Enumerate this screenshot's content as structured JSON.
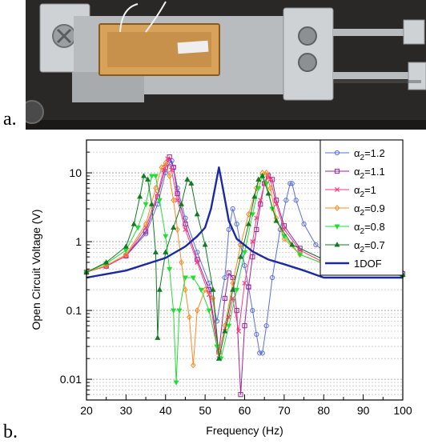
{
  "panels": {
    "a_label": "a.",
    "b_label": "b."
  },
  "photo": {
    "colors": {
      "background": "#2a2826",
      "beam": "#b9bcbe",
      "clamp": "#cfd2d4",
      "patch": "#d9a25a",
      "patch_border": "#8a5a1e"
    }
  },
  "chart_data": {
    "type": "line",
    "xlabel": "Frequency (Hz)",
    "ylabel": "Open Circuit Voltage (V)",
    "xlim": [
      20,
      100
    ],
    "ylim": [
      0.005,
      30
    ],
    "yscale": "log",
    "x_ticks": [
      20,
      30,
      40,
      50,
      60,
      70,
      80,
      90,
      100
    ],
    "y_ticks": [
      {
        "value": 0.01,
        "label": "0.01"
      },
      {
        "value": 0.1,
        "label": "0.1"
      },
      {
        "value": 1,
        "label": "1"
      },
      {
        "value": 10,
        "label": "10"
      }
    ],
    "grid": {
      "horizontal_minor": true,
      "style": "dotted"
    },
    "legend": {
      "placement": "top-right"
    },
    "series": [
      {
        "name": "α2=1.2",
        "legend_base": "α",
        "legend_sub": "2",
        "legend_tail": "=1.2",
        "color": "#5b6ee0",
        "marker": "circle",
        "x": [
          20,
          25,
          30,
          35,
          38,
          40,
          41,
          41.6,
          42,
          43,
          45,
          48,
          51,
          53,
          55,
          56,
          57,
          58,
          59,
          60,
          61,
          62,
          63,
          63.8,
          64.5,
          65.5,
          67,
          69,
          70.5,
          71.5,
          72,
          73,
          75,
          78,
          82,
          88,
          95,
          100
        ],
        "y": [
          0.36,
          0.44,
          0.62,
          1.3,
          3.5,
          10,
          14,
          15,
          12,
          6,
          2.2,
          0.7,
          0.25,
          0.07,
          0.3,
          1.5,
          3,
          1.8,
          0.9,
          0.45,
          0.22,
          0.1,
          0.045,
          0.024,
          0.024,
          0.06,
          0.3,
          1.5,
          4,
          7,
          7,
          4,
          1.8,
          0.9,
          0.6,
          0.45,
          0.38,
          0.35
        ]
      },
      {
        "name": "α2=1.1",
        "legend_base": "α",
        "legend_sub": "2",
        "legend_tail": "=1.1",
        "color": "#a020a0",
        "marker": "square",
        "x": [
          20,
          25,
          30,
          35,
          38,
          40,
          41,
          42,
          43,
          45,
          48,
          51,
          53.5,
          55,
          56,
          57,
          58,
          59,
          60,
          61,
          62,
          63,
          64,
          65,
          66,
          67,
          68,
          70,
          74,
          80,
          88,
          100
        ],
        "y": [
          0.36,
          0.44,
          0.62,
          1.4,
          4.5,
          12,
          17,
          12,
          5,
          1.8,
          0.55,
          0.2,
          0.025,
          0.15,
          0.35,
          0.3,
          0.1,
          0.006,
          0.06,
          0.22,
          0.6,
          1.5,
          3.5,
          7,
          9,
          8,
          4,
          1.7,
          0.8,
          0.55,
          0.42,
          0.34
        ]
      },
      {
        "name": "α2=1",
        "legend_base": "α",
        "legend_sub": "2",
        "legend_tail": "=1",
        "color": "#ff3a7a",
        "marker": "x",
        "x": [
          20,
          25,
          30,
          35,
          38,
          39.5,
          40.5,
          41.5,
          43,
          45,
          48,
          51,
          53.5,
          55,
          56,
          57,
          58.5,
          60,
          62,
          63,
          64,
          65,
          65.8,
          66.5,
          68,
          70,
          74,
          80,
          88,
          100
        ],
        "y": [
          0.36,
          0.44,
          0.62,
          1.6,
          5,
          11,
          16,
          11,
          4,
          1.5,
          0.5,
          0.17,
          0.02,
          0.05,
          0.08,
          0.15,
          0.05,
          0.25,
          1,
          2.2,
          4,
          7,
          9.5,
          8,
          3.5,
          1.5,
          0.75,
          0.5,
          0.4,
          0.33
        ]
      },
      {
        "name": "α2=0.9",
        "legend_base": "α",
        "legend_sub": "2",
        "legend_tail": "=0.9",
        "color": "#ff8a20",
        "marker": "diamond",
        "x": [
          20,
          25,
          30,
          35,
          37.5,
          39,
          40,
          41,
          42,
          43,
          44,
          45,
          46,
          47,
          48,
          50,
          52,
          53.5,
          55,
          57,
          59,
          61,
          63,
          64.5,
          65.5,
          66.5,
          68,
          70,
          74,
          80,
          88,
          100
        ],
        "y": [
          0.36,
          0.45,
          0.65,
          1.8,
          6,
          12,
          14,
          9,
          4,
          1.5,
          0.5,
          0.2,
          0.08,
          0.016,
          0.1,
          0.2,
          0.15,
          0.024,
          0.06,
          0.25,
          0.9,
          2.5,
          6,
          10,
          10,
          6,
          2.2,
          1.1,
          0.65,
          0.48,
          0.38,
          0.32
        ]
      },
      {
        "name": "α2=0.8",
        "legend_base": "α",
        "legend_sub": "2",
        "legend_tail": "=0.8",
        "color": "#22dd33",
        "marker": "triangle-down",
        "x": [
          20,
          25,
          30,
          33,
          35,
          36.5,
          37.5,
          38.5,
          40,
          41,
          42,
          42.7,
          43.5,
          45,
          47,
          49,
          51,
          53,
          54,
          56,
          58,
          60,
          62,
          63.5,
          64.5,
          65.5,
          67,
          70,
          74,
          80,
          88,
          100
        ],
        "y": [
          0.36,
          0.48,
          0.75,
          1.6,
          3.5,
          9,
          9,
          4,
          1.2,
          0.4,
          0.1,
          0.009,
          0.1,
          0.3,
          0.3,
          0.2,
          0.1,
          0.03,
          0.02,
          0.06,
          0.2,
          0.7,
          2.5,
          6,
          9,
          7,
          3,
          1.2,
          0.65,
          0.48,
          0.38,
          0.32
        ]
      },
      {
        "name": "α2=0.7",
        "legend_base": "α",
        "legend_sub": "2",
        "legend_tail": "=0.7",
        "color": "#117a22",
        "marker": "triangle-up",
        "x": [
          20,
          25,
          30,
          32,
          33.5,
          34.5,
          35.5,
          36.5,
          37.5,
          38,
          38.5,
          40,
          42,
          44,
          45.5,
          46.5,
          48,
          50,
          52,
          53.5,
          55,
          57,
          59,
          61,
          62.5,
          63.5,
          64.5,
          66,
          68,
          72,
          80,
          88,
          100
        ],
        "y": [
          0.36,
          0.5,
          0.85,
          1.8,
          4.5,
          9,
          8,
          3.5,
          0.7,
          0.04,
          0.2,
          0.7,
          1.6,
          3.5,
          8,
          7,
          2.5,
          0.9,
          0.2,
          0.02,
          0.05,
          0.2,
          0.6,
          1.8,
          4.5,
          8,
          9,
          5,
          2,
          0.9,
          0.55,
          0.42,
          0.33
        ]
      },
      {
        "name": "1DOF",
        "legend_base": "1DOF",
        "legend_sub": "",
        "legend_tail": "",
        "color": "#1c2aa0",
        "marker": "none",
        "line_width": 2.4,
        "x": [
          20,
          30,
          40,
          45,
          48,
          50,
          51.5,
          52.5,
          53.5,
          54.5,
          56,
          58,
          62,
          66,
          70,
          75,
          80,
          90,
          100
        ],
        "y": [
          0.3,
          0.38,
          0.58,
          0.85,
          1.2,
          1.6,
          3,
          6,
          12,
          6,
          2,
          1.1,
          0.72,
          0.55,
          0.47,
          0.38,
          0.3,
          0.3,
          0.3
        ]
      }
    ]
  }
}
